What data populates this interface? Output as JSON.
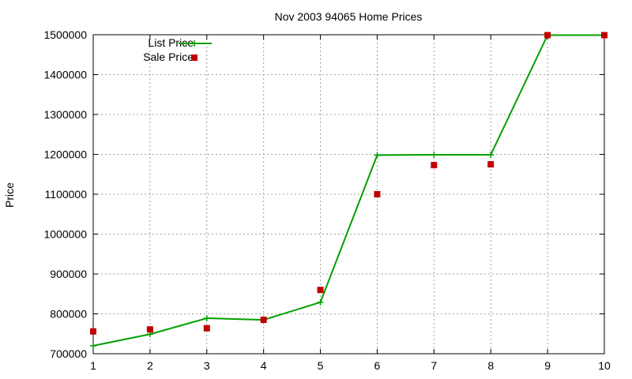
{
  "chart_data": {
    "type": "line",
    "title": "Nov 2003 94065 Home Prices",
    "xlabel": "",
    "ylabel": "Price",
    "xlim": [
      1,
      10
    ],
    "ylim": [
      700000,
      1500000
    ],
    "xticks": [
      "1",
      "2",
      "3",
      "4",
      "5",
      "6",
      "7",
      "8",
      "9",
      "10"
    ],
    "yticks": [
      "700000",
      "800000",
      "900000",
      "1000000",
      "1100000",
      "1200000",
      "1300000",
      "1400000",
      "1500000"
    ],
    "grid": true,
    "legend_position": "top-left",
    "series": [
      {
        "name": "List Price",
        "style": "lines+points",
        "marker": "plus",
        "color": "#00a000",
        "x": [
          1,
          2,
          3,
          4,
          5,
          6,
          7,
          8,
          9,
          10
        ],
        "y": [
          720000,
          749000,
          789000,
          785000,
          829000,
          1198000,
          1199000,
          1199000,
          1499000,
          1499000
        ]
      },
      {
        "name": "Sale Price",
        "style": "points",
        "marker": "square",
        "color": "#c00000",
        "x": [
          1,
          2,
          3,
          4,
          5,
          6,
          7,
          8,
          9,
          10
        ],
        "y": [
          756000,
          761000,
          764000,
          785000,
          860000,
          1100000,
          1173000,
          1175000,
          1499000,
          1499000
        ]
      }
    ]
  }
}
